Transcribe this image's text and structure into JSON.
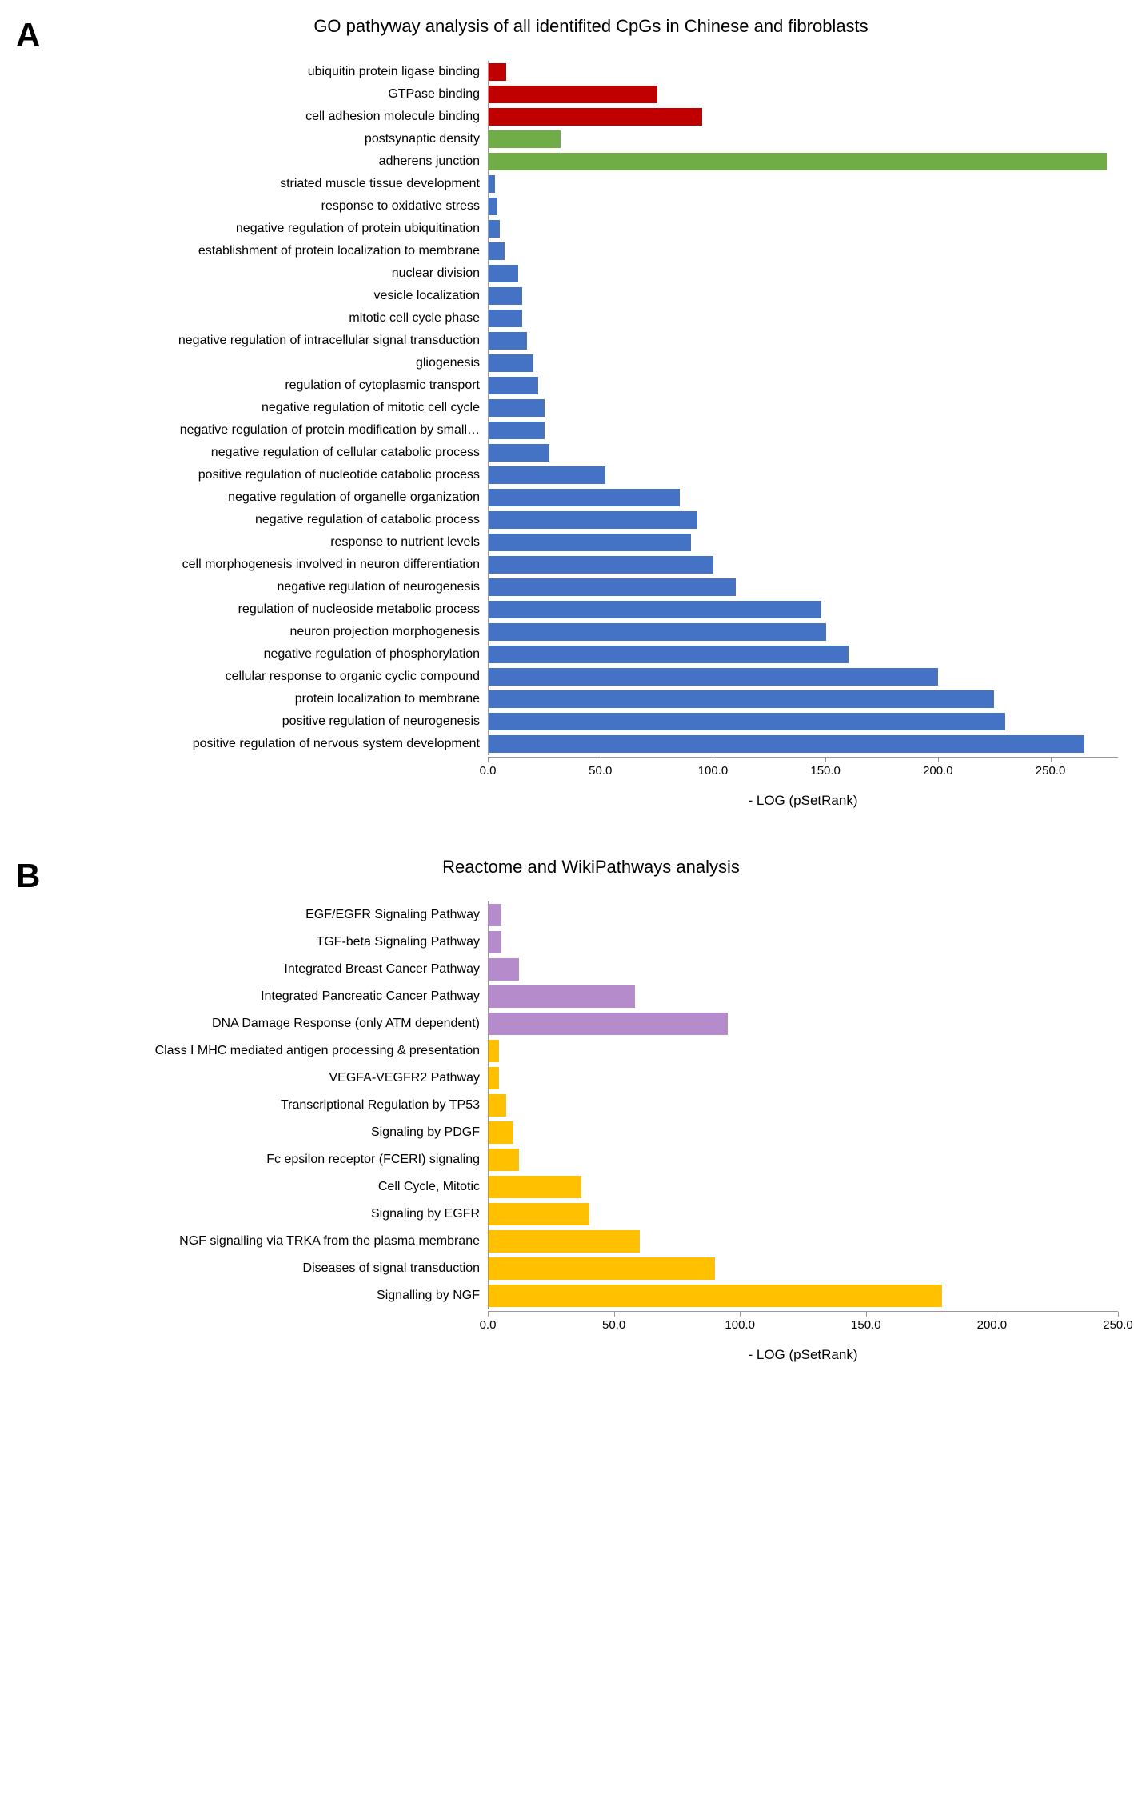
{
  "panelA": {
    "letter": "A",
    "title": "GO pathyway analysis of all identifited CpGs in Chinese and fibroblasts",
    "type": "bar-horizontal",
    "xlabel": "- LOG (pSetRank)",
    "xlim": [
      0,
      280
    ],
    "xticks": [
      0,
      50,
      100,
      150,
      200,
      250
    ],
    "xtick_labels": [
      "0.0",
      "50.0",
      "100.0",
      "150.0",
      "200.0",
      "250.0"
    ],
    "label_fontsize": 16,
    "title_fontsize": 22,
    "axis_fontsize": 17,
    "background_color": "#ffffff",
    "colors": {
      "red": "#c00000",
      "green": "#70ad47",
      "blue": "#4472c4"
    },
    "bars": [
      {
        "label": "ubiquitin protein ligase binding",
        "value": 8,
        "color": "#c00000"
      },
      {
        "label": "GTPase binding",
        "value": 75,
        "color": "#c00000"
      },
      {
        "label": "cell adhesion molecule binding",
        "value": 95,
        "color": "#c00000"
      },
      {
        "label": "postsynaptic density",
        "value": 32,
        "color": "#70ad47"
      },
      {
        "label": "adherens junction",
        "value": 275,
        "color": "#70ad47"
      },
      {
        "label": "striated muscle tissue development",
        "value": 3,
        "color": "#4472c4"
      },
      {
        "label": "response to oxidative stress",
        "value": 4,
        "color": "#4472c4"
      },
      {
        "label": "negative regulation of protein ubiquitination",
        "value": 5,
        "color": "#4472c4"
      },
      {
        "label": "establishment of protein localization to membrane",
        "value": 7,
        "color": "#4472c4"
      },
      {
        "label": "nuclear division",
        "value": 13,
        "color": "#4472c4"
      },
      {
        "label": "vesicle localization",
        "value": 15,
        "color": "#4472c4"
      },
      {
        "label": "mitotic cell cycle phase",
        "value": 15,
        "color": "#4472c4"
      },
      {
        "label": "negative regulation of intracellular signal transduction",
        "value": 17,
        "color": "#4472c4"
      },
      {
        "label": "gliogenesis",
        "value": 20,
        "color": "#4472c4"
      },
      {
        "label": "regulation of cytoplasmic transport",
        "value": 22,
        "color": "#4472c4"
      },
      {
        "label": "negative regulation of mitotic cell cycle",
        "value": 25,
        "color": "#4472c4"
      },
      {
        "label": "negative regulation of protein modification by small…",
        "value": 25,
        "color": "#4472c4"
      },
      {
        "label": "negative regulation of cellular catabolic process",
        "value": 27,
        "color": "#4472c4"
      },
      {
        "label": "positive regulation of nucleotide catabolic process",
        "value": 52,
        "color": "#4472c4"
      },
      {
        "label": "negative regulation of organelle organization",
        "value": 85,
        "color": "#4472c4"
      },
      {
        "label": "negative regulation of catabolic process",
        "value": 93,
        "color": "#4472c4"
      },
      {
        "label": "response to nutrient levels",
        "value": 90,
        "color": "#4472c4"
      },
      {
        "label": "cell morphogenesis involved in neuron differentiation",
        "value": 100,
        "color": "#4472c4"
      },
      {
        "label": "negative regulation of neurogenesis",
        "value": 110,
        "color": "#4472c4"
      },
      {
        "label": "regulation of nucleoside metabolic process",
        "value": 148,
        "color": "#4472c4"
      },
      {
        "label": "neuron projection morphogenesis",
        "value": 150,
        "color": "#4472c4"
      },
      {
        "label": "negative regulation of phosphorylation",
        "value": 160,
        "color": "#4472c4"
      },
      {
        "label": "cellular response to organic cyclic compound",
        "value": 200,
        "color": "#4472c4"
      },
      {
        "label": "protein localization to membrane",
        "value": 225,
        "color": "#4472c4"
      },
      {
        "label": "positive regulation of neurogenesis",
        "value": 230,
        "color": "#4472c4"
      },
      {
        "label": "positive regulation of nervous system development",
        "value": 265,
        "color": "#4472c4"
      }
    ]
  },
  "panelB": {
    "letter": "B",
    "title": "Reactome and WikiPathways analysis",
    "type": "bar-horizontal",
    "xlabel": "- LOG (pSetRank)",
    "xlim": [
      0,
      250
    ],
    "xticks": [
      0,
      50,
      100,
      150,
      200,
      250
    ],
    "xtick_labels": [
      "0.0",
      "50.0",
      "100.0",
      "150.0",
      "200.0",
      "250.0"
    ],
    "label_fontsize": 16,
    "title_fontsize": 22,
    "axis_fontsize": 17,
    "background_color": "#ffffff",
    "colors": {
      "purple": "#b58bcc",
      "orange": "#ffc000"
    },
    "bars": [
      {
        "label": "EGF/EGFR Signaling Pathway",
        "value": 5,
        "color": "#b58bcc"
      },
      {
        "label": "TGF-beta Signaling Pathway",
        "value": 5,
        "color": "#b58bcc"
      },
      {
        "label": "Integrated Breast Cancer Pathway",
        "value": 12,
        "color": "#b58bcc"
      },
      {
        "label": "Integrated Pancreatic Cancer Pathway",
        "value": 58,
        "color": "#b58bcc"
      },
      {
        "label": "DNA Damage Response (only ATM dependent)",
        "value": 95,
        "color": "#b58bcc"
      },
      {
        "label": "Class I MHC mediated antigen processing & presentation",
        "value": 4,
        "color": "#ffc000"
      },
      {
        "label": "VEGFA-VEGFR2 Pathway",
        "value": 4,
        "color": "#ffc000"
      },
      {
        "label": "Transcriptional Regulation by TP53",
        "value": 7,
        "color": "#ffc000"
      },
      {
        "label": "Signaling by PDGF",
        "value": 10,
        "color": "#ffc000"
      },
      {
        "label": "Fc epsilon receptor (FCERI) signaling",
        "value": 12,
        "color": "#ffc000"
      },
      {
        "label": "Cell Cycle, Mitotic",
        "value": 37,
        "color": "#ffc000"
      },
      {
        "label": "Signaling by EGFR",
        "value": 40,
        "color": "#ffc000"
      },
      {
        "label": "NGF signalling via TRKA from the plasma membrane",
        "value": 60,
        "color": "#ffc000"
      },
      {
        "label": "Diseases of signal transduction",
        "value": 90,
        "color": "#ffc000"
      },
      {
        "label": "Signalling by NGF",
        "value": 180,
        "color": "#ffc000"
      }
    ]
  }
}
